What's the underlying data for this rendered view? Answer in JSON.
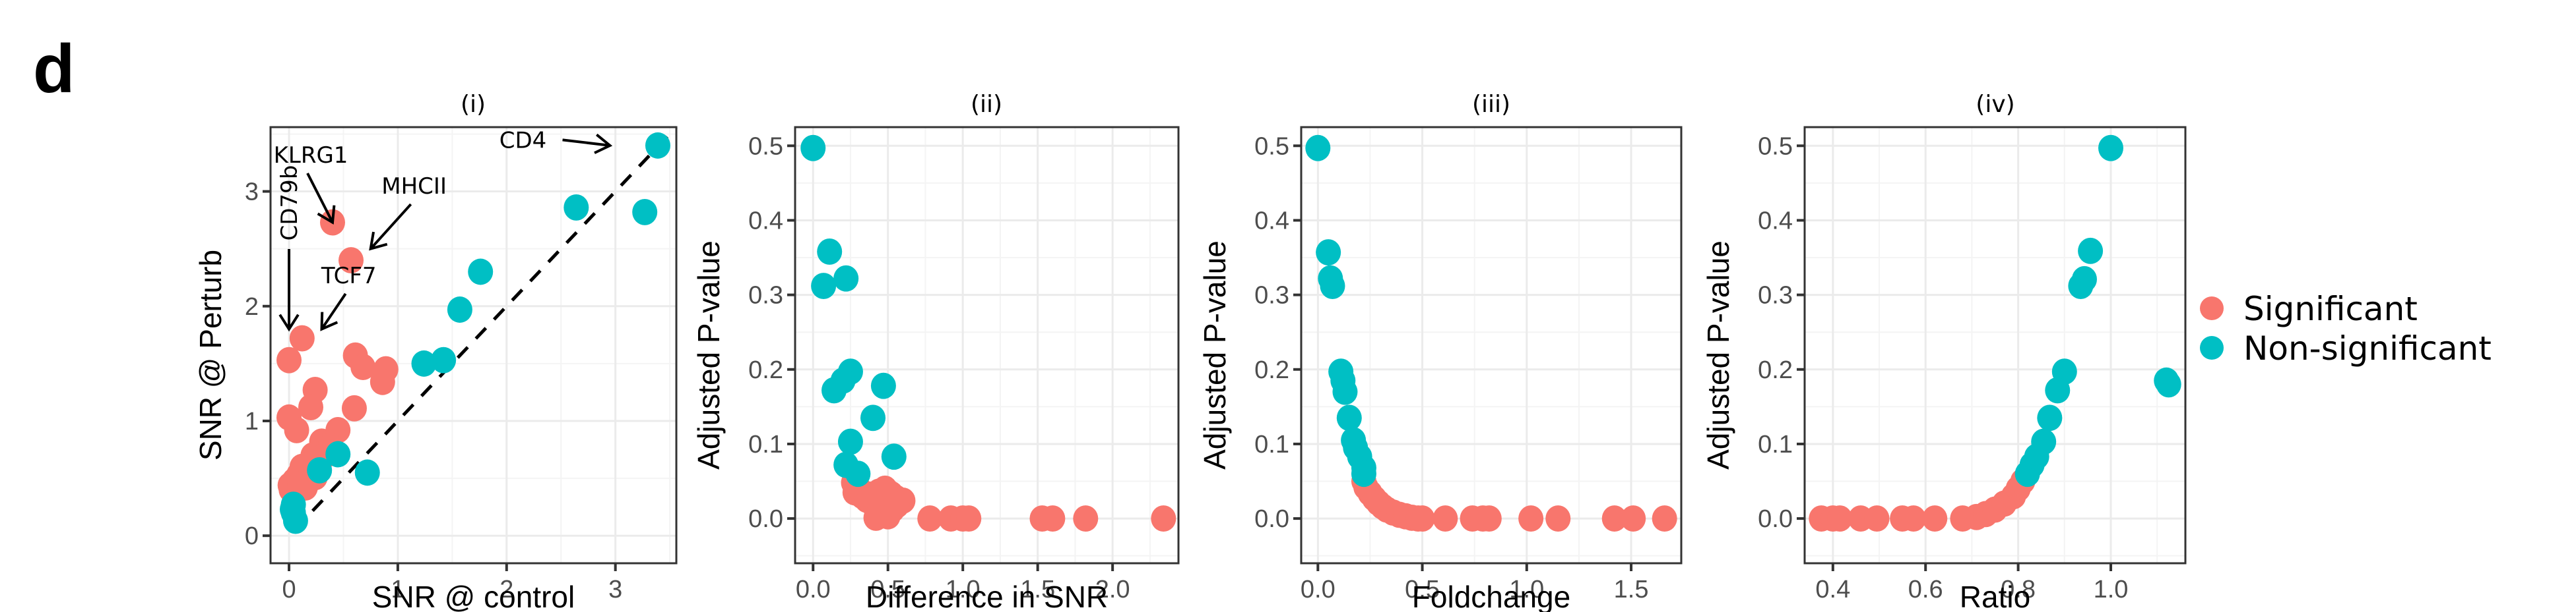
{
  "figure": {
    "panel_letter": "d",
    "legend": {
      "position": "right",
      "items": [
        {
          "label": "Significant",
          "color": "#F8766D"
        },
        {
          "label": "Non-significant",
          "color": "#00BFC4"
        }
      ]
    }
  },
  "chart_data": [
    {
      "id": "i",
      "type": "scatter",
      "title": "(i)",
      "xlabel": "SNR @ control",
      "ylabel": "SNR @ Perturb",
      "xlim": [
        -0.17,
        3.56
      ],
      "ylim": [
        -0.24,
        3.56
      ],
      "xticks": [
        0,
        1,
        2,
        3
      ],
      "xtick_labels": [
        "0",
        "1",
        "2",
        "3"
      ],
      "yticks": [
        0,
        1,
        2,
        3
      ],
      "ytick_labels": [
        "0",
        "1",
        "2",
        "3"
      ],
      "grid": true,
      "reference_line": {
        "type": "identity",
        "style": "dashed",
        "from": [
          0.05,
          0.05
        ],
        "to": [
          3.56,
          3.56
        ]
      },
      "annotations": [
        {
          "text": "KLRG1",
          "target": [
            0.4,
            2.73
          ],
          "text_at": [
            0.2,
            3.25
          ],
          "arrow": "down-left"
        },
        {
          "text": "MHCII",
          "target": [
            0.75,
            2.5
          ],
          "text_at": [
            1.15,
            2.98
          ],
          "arrow": "down-left"
        },
        {
          "text": "TCF7",
          "target": [
            0.3,
            1.8
          ],
          "text_at": [
            0.55,
            2.2
          ],
          "arrow": "down-left"
        },
        {
          "text": "CD79b",
          "target": [
            0.0,
            1.8
          ],
          "text_at": [
            0.0,
            2.9
          ],
          "arrow": "down",
          "rotated": true
        },
        {
          "text": "CD4",
          "target": [
            2.95,
            3.4
          ],
          "text_at": [
            2.15,
            3.38
          ],
          "arrow": "right"
        }
      ],
      "series": [
        {
          "name": "Significant",
          "color": "#F8766D",
          "points": [
            [
              0.4,
              2.73
            ],
            [
              0.57,
              2.4
            ],
            [
              0.12,
              1.72
            ],
            [
              0.0,
              1.53
            ],
            [
              0.61,
              1.57
            ],
            [
              0.68,
              1.47
            ],
            [
              0.89,
              1.45
            ],
            [
              0.86,
              1.34
            ],
            [
              0.24,
              1.27
            ],
            [
              0.2,
              1.12
            ],
            [
              0.6,
              1.11
            ],
            [
              0.0,
              1.03
            ],
            [
              0.07,
              0.92
            ],
            [
              0.45,
              0.92
            ],
            [
              0.3,
              0.82
            ],
            [
              0.38,
              0.78
            ],
            [
              0.22,
              0.7
            ],
            [
              0.09,
              0.53
            ],
            [
              0.24,
              0.51
            ],
            [
              0.01,
              0.44
            ],
            [
              0.15,
              0.42
            ],
            [
              0.05,
              0.48
            ],
            [
              0.12,
              0.6
            ],
            [
              0.18,
              0.62
            ],
            [
              0.33,
              0.7
            ],
            [
              0.02,
              0.4
            ],
            [
              0.1,
              0.45
            ]
          ]
        },
        {
          "name": "Non-significant",
          "color": "#00BFC4",
          "points": [
            [
              3.39,
              3.4
            ],
            [
              2.64,
              2.86
            ],
            [
              3.27,
              2.82
            ],
            [
              1.76,
              2.3
            ],
            [
              1.57,
              1.97
            ],
            [
              1.42,
              1.53
            ],
            [
              1.24,
              1.5
            ],
            [
              0.45,
              0.71
            ],
            [
              0.28,
              0.57
            ],
            [
              0.72,
              0.55
            ],
            [
              0.04,
              0.27
            ],
            [
              0.04,
              0.2
            ],
            [
              0.06,
              0.13
            ],
            [
              0.03,
              0.23
            ]
          ]
        }
      ]
    },
    {
      "id": "ii",
      "type": "scatter",
      "title": "(ii)",
      "xlabel": "Difference in SNR",
      "ylabel": "Adjusted P-value",
      "xlim": [
        -0.12,
        2.44
      ],
      "ylim": [
        -0.06,
        0.525
      ],
      "xticks": [
        0,
        0.5,
        1.0,
        1.5,
        2.0
      ],
      "xtick_labels": [
        "0.0",
        "0.5",
        "1.0",
        "1.5",
        "2.0"
      ],
      "yticks": [
        0,
        0.1,
        0.2,
        0.3,
        0.4,
        0.5
      ],
      "ytick_labels": [
        "0.0",
        "0.1",
        "0.2",
        "0.3",
        "0.4",
        "0.5"
      ],
      "grid": true,
      "series": [
        {
          "name": "Significant",
          "color": "#F8766D",
          "points": [
            [
              0.27,
              0.048
            ],
            [
              0.3,
              0.042
            ],
            [
              0.28,
              0.035
            ],
            [
              0.33,
              0.03
            ],
            [
              0.36,
              0.025
            ],
            [
              0.4,
              0.02
            ],
            [
              0.43,
              0.015
            ],
            [
              0.45,
              0.01
            ],
            [
              0.47,
              0.005
            ],
            [
              0.5,
              0.003
            ],
            [
              0.48,
              0.04
            ],
            [
              0.52,
              0.033
            ],
            [
              0.55,
              0.028
            ],
            [
              0.6,
              0.024
            ],
            [
              0.44,
              0.036
            ],
            [
              0.38,
              0.032
            ],
            [
              0.42,
              0.001
            ],
            [
              0.53,
              0.012
            ],
            [
              0.56,
              0.018
            ],
            [
              0.78,
              0.0
            ],
            [
              0.92,
              0.0
            ],
            [
              1.0,
              0.0
            ],
            [
              1.04,
              0.0
            ],
            [
              1.53,
              0.0
            ],
            [
              1.6,
              0.0
            ],
            [
              1.82,
              0.0
            ],
            [
              2.34,
              0.0
            ]
          ]
        },
        {
          "name": "Non-significant",
          "color": "#00BFC4",
          "points": [
            [
              0.0,
              0.497
            ],
            [
              0.11,
              0.358
            ],
            [
              0.07,
              0.312
            ],
            [
              0.22,
              0.322
            ],
            [
              0.25,
              0.197
            ],
            [
              0.2,
              0.185
            ],
            [
              0.14,
              0.172
            ],
            [
              0.47,
              0.178
            ],
            [
              0.4,
              0.135
            ],
            [
              0.25,
              0.103
            ],
            [
              0.54,
              0.083
            ],
            [
              0.22,
              0.072
            ],
            [
              0.3,
              0.06
            ]
          ]
        }
      ]
    },
    {
      "id": "iii",
      "type": "scatter",
      "title": "(iii)",
      "xlabel": "Foldchange",
      "ylabel": "Adjusted P-value",
      "xlim": [
        -0.08,
        1.74
      ],
      "ylim": [
        -0.06,
        0.525
      ],
      "xticks": [
        0,
        0.5,
        1.0,
        1.5
      ],
      "xtick_labels": [
        "0.0",
        "0.5",
        "1.0",
        "1.5"
      ],
      "yticks": [
        0,
        0.1,
        0.2,
        0.3,
        0.4,
        0.5
      ],
      "ytick_labels": [
        "0.0",
        "0.1",
        "0.2",
        "0.3",
        "0.4",
        "0.5"
      ],
      "grid": true,
      "series": [
        {
          "name": "Significant",
          "color": "#F8766D",
          "points": [
            [
              0.22,
              0.05
            ],
            [
              0.23,
              0.042
            ],
            [
              0.25,
              0.034
            ],
            [
              0.27,
              0.027
            ],
            [
              0.29,
              0.021
            ],
            [
              0.31,
              0.016
            ],
            [
              0.33,
              0.012
            ],
            [
              0.36,
              0.008
            ],
            [
              0.39,
              0.005
            ],
            [
              0.42,
              0.003
            ],
            [
              0.45,
              0.001
            ],
            [
              0.48,
              0.0
            ],
            [
              0.5,
              0.0
            ],
            [
              0.61,
              0.0
            ],
            [
              0.74,
              0.0
            ],
            [
              0.79,
              0.0
            ],
            [
              0.82,
              0.0
            ],
            [
              1.02,
              0.0
            ],
            [
              1.15,
              0.0
            ],
            [
              1.42,
              0.0
            ],
            [
              1.51,
              0.0
            ],
            [
              1.66,
              0.0
            ]
          ]
        },
        {
          "name": "Non-significant",
          "color": "#00BFC4",
          "points": [
            [
              0.0,
              0.497
            ],
            [
              0.05,
              0.357
            ],
            [
              0.06,
              0.322
            ],
            [
              0.07,
              0.312
            ],
            [
              0.11,
              0.197
            ],
            [
              0.12,
              0.185
            ],
            [
              0.13,
              0.17
            ],
            [
              0.15,
              0.135
            ],
            [
              0.17,
              0.105
            ],
            [
              0.18,
              0.095
            ],
            [
              0.2,
              0.083
            ],
            [
              0.22,
              0.068
            ],
            [
              0.22,
              0.06
            ]
          ]
        }
      ]
    },
    {
      "id": "iv",
      "type": "scatter",
      "title": "(iv)",
      "xlabel": "Ratio",
      "ylabel": "Adjusted P-value",
      "xlim": [
        0.339,
        1.161
      ],
      "ylim": [
        -0.06,
        0.525
      ],
      "xticks": [
        0.4,
        0.6,
        0.8,
        1.0
      ],
      "xtick_labels": [
        "0.4",
        "0.6",
        "0.8",
        "1.0"
      ],
      "yticks": [
        0,
        0.1,
        0.2,
        0.3,
        0.4,
        0.5
      ],
      "ytick_labels": [
        "0.0",
        "0.1",
        "0.2",
        "0.3",
        "0.4",
        "0.5"
      ],
      "grid": true,
      "series": [
        {
          "name": "Significant",
          "color": "#F8766D",
          "points": [
            [
              0.375,
              0.0
            ],
            [
              0.4,
              0.0
            ],
            [
              0.415,
              0.0
            ],
            [
              0.46,
              0.0
            ],
            [
              0.495,
              0.0
            ],
            [
              0.55,
              0.0
            ],
            [
              0.574,
              0.0
            ],
            [
              0.62,
              0.0
            ],
            [
              0.68,
              0.0
            ],
            [
              0.71,
              0.002
            ],
            [
              0.73,
              0.006
            ],
            [
              0.75,
              0.012
            ],
            [
              0.77,
              0.02
            ],
            [
              0.79,
              0.03
            ],
            [
              0.8,
              0.04
            ],
            [
              0.81,
              0.05
            ]
          ]
        },
        {
          "name": "Non-significant",
          "color": "#00BFC4",
          "points": [
            [
              0.82,
              0.06
            ],
            [
              0.83,
              0.072
            ],
            [
              0.84,
              0.083
            ],
            [
              0.855,
              0.103
            ],
            [
              0.868,
              0.135
            ],
            [
              0.885,
              0.172
            ],
            [
              0.9,
              0.197
            ],
            [
              0.935,
              0.312
            ],
            [
              0.943,
              0.321
            ],
            [
              0.956,
              0.359
            ],
            [
              1.0,
              0.497
            ],
            [
              1.12,
              0.185
            ],
            [
              1.125,
              0.18
            ]
          ]
        }
      ]
    }
  ]
}
